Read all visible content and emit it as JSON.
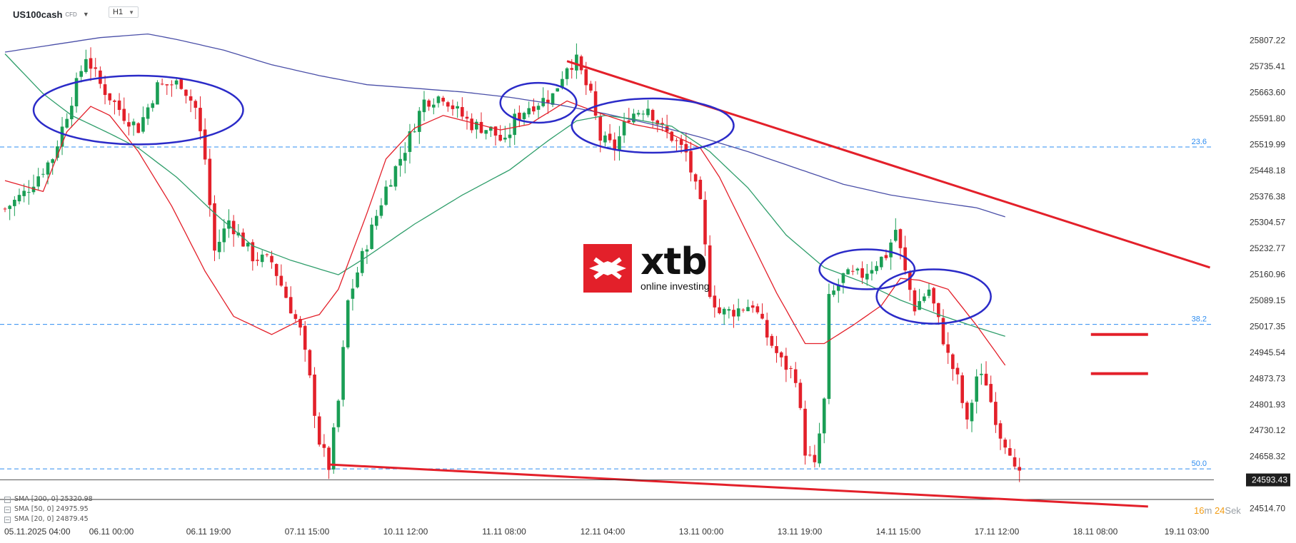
{
  "header": {
    "symbol": "US100cash",
    "instrument_type": "CFD",
    "timeframe": "H1"
  },
  "logo": {
    "name": "xtb",
    "tagline": "online investing"
  },
  "colors": {
    "bull": "#1a9e55",
    "bear": "#e3202a",
    "sma200": "#4a4fa8",
    "sma50": "#2f9e6b",
    "sma20": "#e3202a",
    "fib": "#2d8cf0",
    "circle": "#2b2bc8",
    "trend": "#e3202a"
  },
  "indicators": [
    {
      "label": "SMA [200, 0] 25320.98"
    },
    {
      "label": "SMA [50, 0] 24975.95"
    },
    {
      "label": "SMA [20, 0] 24879.45"
    }
  ],
  "countdown": {
    "minutes": "16",
    "min_unit": "m",
    "seconds": "24",
    "sec_unit": "Sek"
  },
  "chart_data": {
    "type": "candlestick",
    "title": "US100cash",
    "timeframe": "H1",
    "y_axis_ticks": [
      "25807.22",
      "25735.41",
      "25663.60",
      "25591.80",
      "25519.99",
      "25448.18",
      "25376.38",
      "25304.57",
      "25232.77",
      "25160.96",
      "25089.15",
      "25017.35",
      "24945.54",
      "24873.73",
      "24801.93",
      "24730.12",
      "24658.32",
      "24514.70"
    ],
    "ylim": [
      24500,
      25840
    ],
    "last_price": "24593.43",
    "x_axis_ticks": [
      "05.11.2025 04:00",
      "06.11 00:00",
      "06.11 19:00",
      "07.11 15:00",
      "10.11 12:00",
      "11.11 08:00",
      "12.11 04:00",
      "13.11 00:00",
      "13.11 19:00",
      "14.11 15:00",
      "17.11 12:00",
      "18.11 08:00",
      "19.11 03:00"
    ],
    "fib_levels": [
      {
        "label": "23.6",
        "value": 25513
      },
      {
        "label": "38.2",
        "value": 25023
      },
      {
        "label": "50.0",
        "value": 24624
      }
    ],
    "price_anchors": [
      [
        0,
        25342
      ],
      [
        4,
        25385
      ],
      [
        10,
        25485
      ],
      [
        14,
        25645
      ],
      [
        17,
        25765
      ],
      [
        20,
        25685
      ],
      [
        25,
        25600
      ],
      [
        28,
        25565
      ],
      [
        32,
        25680
      ],
      [
        37,
        25690
      ],
      [
        40,
        25620
      ],
      [
        42,
        25480
      ],
      [
        44,
        25225
      ],
      [
        47,
        25310
      ],
      [
        52,
        25210
      ],
      [
        56,
        25195
      ],
      [
        59,
        25100
      ],
      [
        62,
        25005
      ],
      [
        64,
        24870
      ],
      [
        66,
        24700
      ],
      [
        68,
        24630
      ],
      [
        70,
        24810
      ],
      [
        72,
        25085
      ],
      [
        75,
        25210
      ],
      [
        80,
        25400
      ],
      [
        84,
        25510
      ],
      [
        88,
        25640
      ],
      [
        92,
        25655
      ],
      [
        95,
        25610
      ],
      [
        98,
        25575
      ],
      [
        102,
        25560
      ],
      [
        105,
        25520
      ],
      [
        107,
        25590
      ],
      [
        110,
        25625
      ],
      [
        115,
        25655
      ],
      [
        118,
        25740
      ],
      [
        120,
        25750
      ],
      [
        123,
        25650
      ],
      [
        125,
        25535
      ],
      [
        128,
        25510
      ],
      [
        131,
        25600
      ],
      [
        135,
        25625
      ],
      [
        138,
        25560
      ],
      [
        140,
        25540
      ],
      [
        143,
        25495
      ],
      [
        146,
        25350
      ],
      [
        148,
        25115
      ],
      [
        150,
        25055
      ],
      [
        153,
        25060
      ],
      [
        157,
        25080
      ],
      [
        160,
        24990
      ],
      [
        163,
        24920
      ],
      [
        166,
        24880
      ],
      [
        168,
        24675
      ],
      [
        170,
        24628
      ],
      [
        172,
        24810
      ],
      [
        173,
        25090
      ],
      [
        176,
        25155
      ],
      [
        180,
        25160
      ],
      [
        183,
        25195
      ],
      [
        185,
        25215
      ],
      [
        187,
        25285
      ],
      [
        189,
        25165
      ],
      [
        191,
        25070
      ],
      [
        194,
        25120
      ],
      [
        196,
        25030
      ],
      [
        198,
        24935
      ],
      [
        200,
        24870
      ],
      [
        202,
        24745
      ],
      [
        204,
        24880
      ],
      [
        206,
        24865
      ],
      [
        207,
        24810
      ],
      [
        209,
        24720
      ],
      [
        211,
        24680
      ],
      [
        212,
        24615
      ],
      [
        213,
        24600
      ]
    ],
    "sma20_anchors": [
      [
        0,
        25420
      ],
      [
        8,
        25390
      ],
      [
        13,
        25555
      ],
      [
        18,
        25625
      ],
      [
        22,
        25600
      ],
      [
        28,
        25500
      ],
      [
        35,
        25350
      ],
      [
        42,
        25170
      ],
      [
        48,
        25045
      ],
      [
        56,
        24995
      ],
      [
        62,
        25035
      ],
      [
        66,
        25050
      ],
      [
        70,
        25120
      ],
      [
        76,
        25330
      ],
      [
        80,
        25480
      ],
      [
        86,
        25565
      ],
      [
        92,
        25600
      ],
      [
        98,
        25580
      ],
      [
        104,
        25560
      ],
      [
        110,
        25575
      ],
      [
        118,
        25640
      ],
      [
        124,
        25610
      ],
      [
        132,
        25575
      ],
      [
        138,
        25560
      ],
      [
        146,
        25510
      ],
      [
        150,
        25430
      ],
      [
        156,
        25270
      ],
      [
        162,
        25110
      ],
      [
        168,
        24970
      ],
      [
        172,
        24970
      ],
      [
        178,
        25020
      ],
      [
        184,
        25075
      ],
      [
        188,
        25150
      ],
      [
        192,
        25145
      ],
      [
        198,
        25120
      ],
      [
        204,
        25020
      ],
      [
        210,
        24910
      ]
    ],
    "sma50_anchors": [
      [
        0,
        25770
      ],
      [
        8,
        25660
      ],
      [
        14,
        25600
      ],
      [
        22,
        25550
      ],
      [
        28,
        25510
      ],
      [
        36,
        25430
      ],
      [
        44,
        25330
      ],
      [
        52,
        25240
      ],
      [
        60,
        25200
      ],
      [
        70,
        25160
      ],
      [
        76,
        25210
      ],
      [
        86,
        25300
      ],
      [
        96,
        25380
      ],
      [
        106,
        25450
      ],
      [
        114,
        25530
      ],
      [
        120,
        25585
      ],
      [
        126,
        25600
      ],
      [
        132,
        25590
      ],
      [
        140,
        25570
      ],
      [
        148,
        25500
      ],
      [
        156,
        25400
      ],
      [
        164,
        25270
      ],
      [
        172,
        25180
      ],
      [
        180,
        25140
      ],
      [
        188,
        25090
      ],
      [
        196,
        25050
      ],
      [
        204,
        25015
      ],
      [
        210,
        24990
      ]
    ],
    "sma200_anchors": [
      [
        0,
        25775
      ],
      [
        10,
        25795
      ],
      [
        20,
        25815
      ],
      [
        30,
        25825
      ],
      [
        36,
        25810
      ],
      [
        46,
        25780
      ],
      [
        56,
        25740
      ],
      [
        66,
        25710
      ],
      [
        76,
        25685
      ],
      [
        86,
        25675
      ],
      [
        96,
        25665
      ],
      [
        106,
        25650
      ],
      [
        116,
        25630
      ],
      [
        126,
        25605
      ],
      [
        136,
        25575
      ],
      [
        146,
        25540
      ],
      [
        156,
        25500
      ],
      [
        166,
        25455
      ],
      [
        176,
        25410
      ],
      [
        186,
        25380
      ],
      [
        196,
        25360
      ],
      [
        204,
        25345
      ],
      [
        210,
        25320
      ]
    ],
    "annotations": {
      "trendlines": [
        {
          "from": [
            118,
            25750
          ],
          "to": [
            253,
            25180
          ]
        },
        {
          "from": [
            68,
            24636
          ],
          "to": [
            240,
            24520
          ]
        }
      ],
      "horizontal_segments": [
        {
          "from": 228,
          "to": 240,
          "value": 24995
        },
        {
          "from": 228,
          "to": 240,
          "value": 24887
        }
      ],
      "circles": [
        {
          "x": 28,
          "value": 25615,
          "rx": 22,
          "rvalue": 95
        },
        {
          "x": 112,
          "value": 25635,
          "rx": 8,
          "rvalue": 55
        },
        {
          "x": 136,
          "value": 25572,
          "rx": 17,
          "rvalue": 75
        },
        {
          "x": 181,
          "value": 25175,
          "rx": 10,
          "rvalue": 55
        },
        {
          "x": 195,
          "value": 25100,
          "rx": 12,
          "rvalue": 75
        }
      ]
    }
  }
}
